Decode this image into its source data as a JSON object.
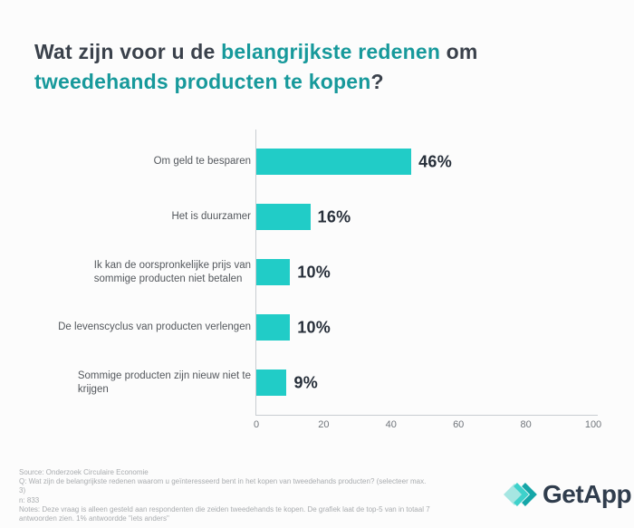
{
  "title": {
    "segments": [
      {
        "text": "Wat zijn voor u de ",
        "accent": false
      },
      {
        "text": "belangrijkste redenen",
        "accent": true
      },
      {
        "text": " om",
        "accent": false
      },
      {
        "text": "\n",
        "accent": false
      },
      {
        "text": "tweedehands producten te kopen",
        "accent": true
      },
      {
        "text": "?",
        "accent": false
      }
    ],
    "accent_color": "#17999b",
    "text_color": "#3a414b"
  },
  "chart_data": {
    "type": "bar",
    "orientation": "horizontal",
    "title": "Wat zijn voor u de belangrijkste redenen om tweedehands producten te kopen?",
    "categories": [
      "Om geld te besparen",
      "Het is duurzamer",
      "Ik kan de oorspronkelijke prijs van\nsommige producten niet betalen",
      "De levenscyclus van producten verlengen",
      "Sommige producten zijn nieuw niet te\nkrijgen"
    ],
    "values": [
      46,
      16,
      10,
      10,
      9
    ],
    "value_labels": [
      "46%",
      "16%",
      "10%",
      "10%",
      "9%"
    ],
    "xlim": [
      0,
      100
    ],
    "xticks": [
      0,
      20,
      40,
      60,
      80,
      100
    ],
    "bar_color": "#21ccc7",
    "grid": false,
    "legend_position": "none"
  },
  "footer": {
    "lines": [
      "Source: Onderzoek Circulaire Economie",
      "Q: Wat zijn de belangrijkste redenen waarom u geïnteresseerd bent in het kopen van tweedehands producten? (selecteer max.",
      "3)",
      "n: 833",
      "Notes: Deze vraag is alleen gesteld aan respondenten die zeiden tweedehands te kopen. De grafiek laat de top-5 van in totaal 7",
      "antwoorden zien. 1% antwoordde \"iets anders\""
    ]
  },
  "logo": {
    "text": "GetApp",
    "mark_colors": {
      "diamond": "#a6e6e2",
      "chevron_mid": "#3ed1cb",
      "chevron_dark": "#15a6a8"
    }
  }
}
